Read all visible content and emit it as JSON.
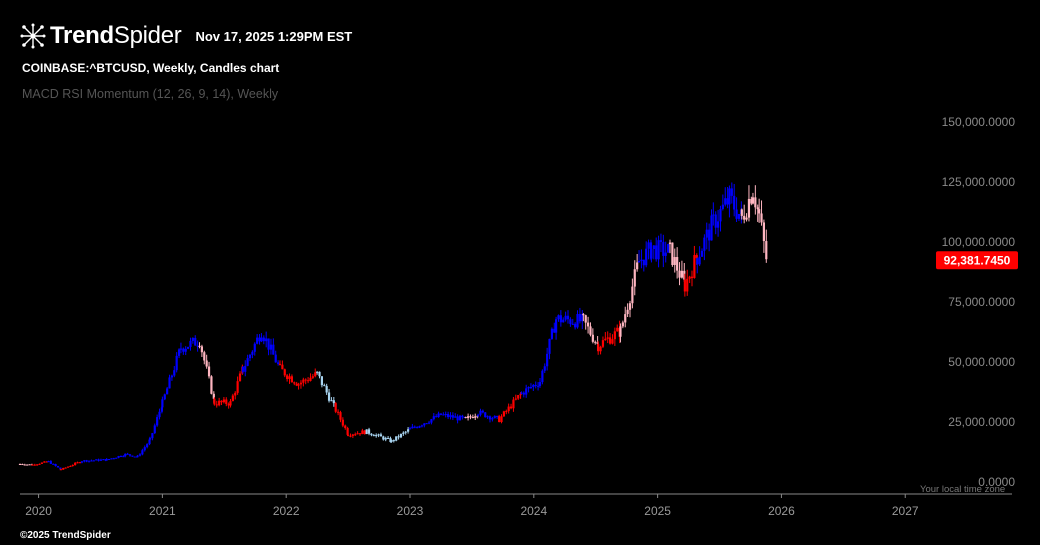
{
  "header": {
    "brand_bold": "Trend",
    "brand_light": "Spider",
    "timestamp": "Nov 17, 2025 1:29PM EST"
  },
  "symbol_line": "COINBASE:^BTCUSD, Weekly, Candles chart",
  "indicator_line": "MACD RSI Momentum (12, 26, 9, 14), Weekly",
  "footer": {
    "copyright": "©2025 TrendSpider"
  },
  "timezone_note": "Your local time zone",
  "colors": {
    "background": "#000000",
    "bull_strong": "#0000ff",
    "bull_weak": "#a8d4f0",
    "bear_strong": "#ff0000",
    "bear_weak": "#ffb6c1",
    "price_label_bg": "#ff0000"
  },
  "chart_data": {
    "type": "candlestick",
    "title": "COINBASE:^BTCUSD, Weekly, Candles chart",
    "x_ticks": [
      "2020",
      "2021",
      "2022",
      "2023",
      "2024",
      "2025",
      "2026",
      "2027"
    ],
    "x_range": [
      2019.85,
      2027.2
    ],
    "y_ticks": [
      "0.0000",
      "25,000.0000",
      "50,000.0000",
      "75,000.0000",
      "100,000.0000",
      "125,000.0000",
      "150,000.0000"
    ],
    "ylim": [
      0,
      155000
    ],
    "last_price": 92381.745,
    "last_price_label": "92,381.7450",
    "color_mode_legend": [
      "bull_strong",
      "bull_weak",
      "bear_strong",
      "bear_weak"
    ],
    "series": [
      {
        "name": "COINBASE:^BTCUSD",
        "points": [
          {
            "t": 2019.85,
            "c": 7500,
            "m": "bear_weak"
          },
          {
            "t": 2019.95,
            "c": 7200,
            "m": "bear_strong"
          },
          {
            "t": 2020.08,
            "c": 8500,
            "m": "bull_strong"
          },
          {
            "t": 2020.18,
            "c": 5200,
            "m": "bear_strong"
          },
          {
            "t": 2020.35,
            "c": 8800,
            "m": "bull_strong"
          },
          {
            "t": 2020.55,
            "c": 9300,
            "m": "bull_strong"
          },
          {
            "t": 2020.7,
            "c": 11500,
            "m": "bull_strong"
          },
          {
            "t": 2020.8,
            "c": 10600,
            "m": "bull_strong"
          },
          {
            "t": 2020.9,
            "c": 17500,
            "m": "bull_strong"
          },
          {
            "t": 2021.0,
            "c": 33000,
            "m": "bull_strong"
          },
          {
            "t": 2021.15,
            "c": 56000,
            "m": "bull_strong"
          },
          {
            "t": 2021.3,
            "c": 59000,
            "m": "bear_weak"
          },
          {
            "t": 2021.42,
            "c": 33000,
            "m": "bear_strong"
          },
          {
            "t": 2021.55,
            "c": 33000,
            "m": "bear_strong"
          },
          {
            "t": 2021.65,
            "c": 47000,
            "m": "bull_strong"
          },
          {
            "t": 2021.8,
            "c": 63000,
            "m": "bull_strong"
          },
          {
            "t": 2021.95,
            "c": 47000,
            "m": "bear_strong"
          },
          {
            "t": 2022.1,
            "c": 41000,
            "m": "bear_strong"
          },
          {
            "t": 2022.25,
            "c": 45000,
            "m": "bull_weak"
          },
          {
            "t": 2022.4,
            "c": 30000,
            "m": "bear_strong"
          },
          {
            "t": 2022.5,
            "c": 20000,
            "m": "bear_strong"
          },
          {
            "t": 2022.65,
            "c": 21000,
            "m": "bull_weak"
          },
          {
            "t": 2022.85,
            "c": 17000,
            "m": "bull_weak"
          },
          {
            "t": 2023.0,
            "c": 22000,
            "m": "bull_strong"
          },
          {
            "t": 2023.25,
            "c": 28000,
            "m": "bull_strong"
          },
          {
            "t": 2023.45,
            "c": 26000,
            "m": "bear_weak"
          },
          {
            "t": 2023.55,
            "c": 29000,
            "m": "bull_strong"
          },
          {
            "t": 2023.72,
            "c": 26000,
            "m": "bear_strong"
          },
          {
            "t": 2023.9,
            "c": 37000,
            "m": "bull_strong"
          },
          {
            "t": 2024.05,
            "c": 42000,
            "m": "bull_strong"
          },
          {
            "t": 2024.18,
            "c": 68000,
            "m": "bull_strong"
          },
          {
            "t": 2024.4,
            "c": 67000,
            "m": "bear_weak"
          },
          {
            "t": 2024.52,
            "c": 57000,
            "m": "bear_strong"
          },
          {
            "t": 2024.7,
            "c": 63000,
            "m": "bear_weak"
          },
          {
            "t": 2024.85,
            "c": 92000,
            "m": "bull_strong"
          },
          {
            "t": 2024.95,
            "c": 97000,
            "m": "bull_strong"
          },
          {
            "t": 2025.1,
            "c": 96000,
            "m": "bear_weak"
          },
          {
            "t": 2025.22,
            "c": 82000,
            "m": "bear_strong"
          },
          {
            "t": 2025.32,
            "c": 94000,
            "m": "bull_strong"
          },
          {
            "t": 2025.45,
            "c": 108000,
            "m": "bull_strong"
          },
          {
            "t": 2025.58,
            "c": 118000,
            "m": "bull_strong"
          },
          {
            "t": 2025.68,
            "c": 110000,
            "m": "bear_weak"
          },
          {
            "t": 2025.77,
            "c": 122000,
            "m": "bear_weak"
          },
          {
            "t": 2025.82,
            "c": 111000,
            "m": "bear_weak"
          },
          {
            "t": 2025.88,
            "c": 92381.745,
            "m": "bear_strong"
          }
        ]
      }
    ]
  }
}
